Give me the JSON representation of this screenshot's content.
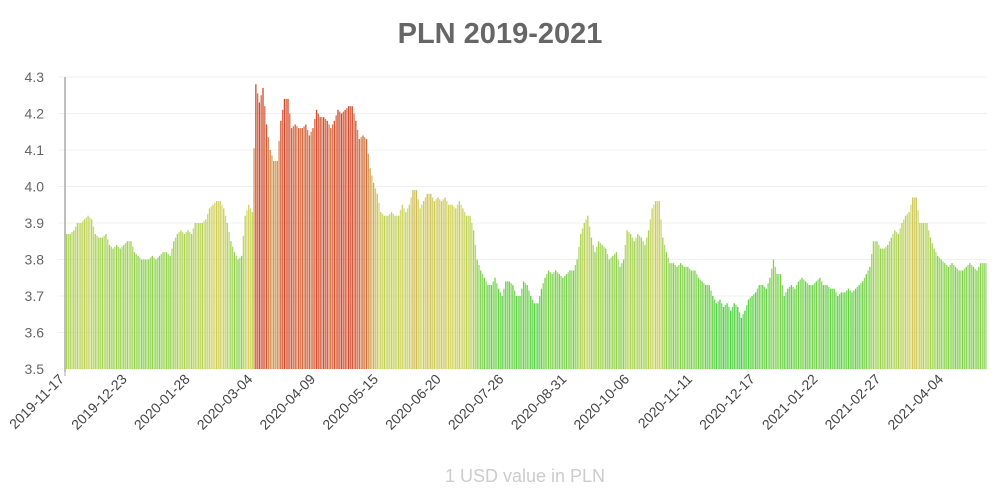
{
  "chart_data": {
    "type": "bar",
    "title": "PLN 2019-2021",
    "xlabel": "1 USD value in PLN",
    "ylabel": "",
    "ylim": [
      3.5,
      4.3
    ],
    "yticks": [
      "3.5",
      "3.6",
      "3.7",
      "3.8",
      "3.9",
      "4.0",
      "4.1",
      "4.2",
      "4.3"
    ],
    "xticks": [
      "2019-11-17",
      "2019-12-23",
      "2020-01-28",
      "2020-03-04",
      "2020-04-09",
      "2020-05-15",
      "2020-06-20",
      "2020-07-26",
      "2020-08-31",
      "2020-10-06",
      "2020-11-11",
      "2020-12-17",
      "2021-01-22",
      "2021-02-27",
      "2021-04-04"
    ],
    "x_start": "2019-11-17",
    "grid": true,
    "legend": "none",
    "color_scale": {
      "low": "#3dd13d",
      "mid": "#cfd25a",
      "high": "#d24a2a"
    },
    "values": [
      3.87,
      3.87,
      3.88,
      3.9,
      3.9,
      3.91,
      3.92,
      3.91,
      3.87,
      3.86,
      3.86,
      3.87,
      3.84,
      3.83,
      3.84,
      3.83,
      3.84,
      3.85,
      3.85,
      3.82,
      3.81,
      3.8,
      3.8,
      3.8,
      3.81,
      3.8,
      3.81,
      3.82,
      3.82,
      3.81,
      3.85,
      3.87,
      3.88,
      3.87,
      3.88,
      3.87,
      3.9,
      3.9,
      3.9,
      3.91,
      3.94,
      3.95,
      3.96,
      3.96,
      3.94,
      3.9,
      3.85,
      3.82,
      3.8,
      3.81,
      3.92,
      3.95,
      3.93,
      4.28,
      4.23,
      4.27,
      4.17,
      4.1,
      4.07,
      4.07,
      4.18,
      4.24,
      4.24,
      4.16,
      4.17,
      4.16,
      4.16,
      4.17,
      4.14,
      4.16,
      4.21,
      4.19,
      4.19,
      4.18,
      4.16,
      4.18,
      4.21,
      4.2,
      4.21,
      4.22,
      4.22,
      4.18,
      4.13,
      4.14,
      4.13,
      4.05,
      4.01,
      3.98,
      3.93,
      3.92,
      3.92,
      3.93,
      3.92,
      3.92,
      3.95,
      3.93,
      3.95,
      3.99,
      3.99,
      3.94,
      3.96,
      3.98,
      3.98,
      3.96,
      3.97,
      3.96,
      3.97,
      3.95,
      3.95,
      3.94,
      3.96,
      3.94,
      3.92,
      3.92,
      3.88,
      3.8,
      3.77,
      3.75,
      3.73,
      3.73,
      3.75,
      3.72,
      3.7,
      3.74,
      3.74,
      3.73,
      3.7,
      3.7,
      3.74,
      3.73,
      3.7,
      3.68,
      3.68,
      3.72,
      3.75,
      3.77,
      3.76,
      3.77,
      3.76,
      3.75,
      3.76,
      3.77,
      3.77,
      3.8,
      3.87,
      3.9,
      3.92,
      3.86,
      3.82,
      3.85,
      3.84,
      3.83,
      3.8,
      3.81,
      3.82,
      3.78,
      3.8,
      3.88,
      3.87,
      3.85,
      3.87,
      3.86,
      3.84,
      3.88,
      3.94,
      3.96,
      3.96,
      3.86,
      3.82,
      3.79,
      3.79,
      3.78,
      3.79,
      3.78,
      3.78,
      3.77,
      3.77,
      3.75,
      3.74,
      3.73,
      3.73,
      3.7,
      3.68,
      3.69,
      3.67,
      3.68,
      3.66,
      3.68,
      3.67,
      3.64,
      3.66,
      3.69,
      3.7,
      3.71,
      3.73,
      3.73,
      3.72,
      3.75,
      3.8,
      3.76,
      3.76,
      3.7,
      3.72,
      3.73,
      3.72,
      3.74,
      3.75,
      3.74,
      3.73,
      3.73,
      3.74,
      3.75,
      3.73,
      3.73,
      3.72,
      3.72,
      3.7,
      3.71,
      3.71,
      3.72,
      3.71,
      3.72,
      3.73,
      3.74,
      3.76,
      3.78,
      3.85,
      3.85,
      3.83,
      3.83,
      3.84,
      3.86,
      3.88,
      3.87,
      3.9,
      3.92,
      3.93,
      3.97,
      3.97,
      3.9,
      3.9,
      3.9,
      3.86,
      3.83,
      3.81,
      3.8,
      3.79,
      3.78,
      3.79,
      3.78,
      3.77,
      3.77,
      3.78,
      3.79,
      3.78,
      3.77,
      3.79,
      3.79
    ]
  }
}
